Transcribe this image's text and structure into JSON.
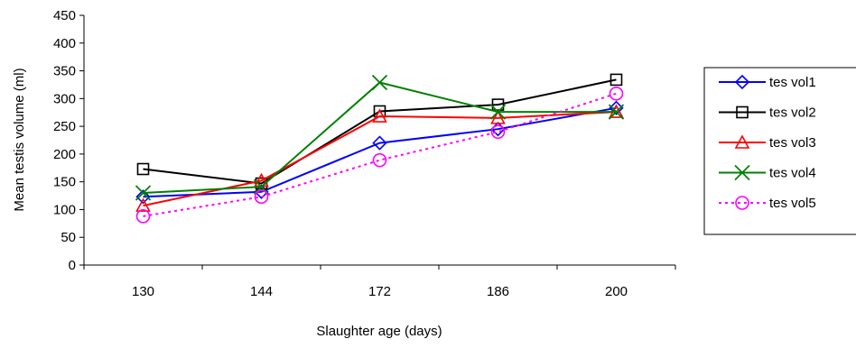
{
  "chart_data": {
    "type": "line",
    "title": "",
    "xlabel": "Slaughter age (days)",
    "ylabel": "Mean testis volume (ml)",
    "categories": [
      "130",
      "144",
      "172",
      "186",
      "200"
    ],
    "ylim": [
      0,
      450
    ],
    "yticks": [
      0,
      50,
      100,
      150,
      200,
      250,
      300,
      350,
      400,
      450
    ],
    "grid": false,
    "legend_position": "right",
    "series": [
      {
        "name": "tes vol1",
        "color": "#0000ff",
        "marker": "diamond",
        "dash": "solid",
        "values": [
          123,
          132,
          220,
          245,
          283
        ]
      },
      {
        "name": "tes vol2",
        "color": "#000000",
        "marker": "square",
        "dash": "solid",
        "values": [
          173,
          147,
          277,
          289,
          334
        ]
      },
      {
        "name": "tes vol3",
        "color": "#ff0000",
        "marker": "triangle",
        "dash": "solid",
        "values": [
          107,
          152,
          268,
          265,
          276
        ]
      },
      {
        "name": "tes vol4",
        "color": "#008000",
        "marker": "x",
        "dash": "solid",
        "values": [
          130,
          141,
          329,
          276,
          276
        ]
      },
      {
        "name": "tes vol5",
        "color": "#ff00ff",
        "marker": "circle",
        "dash": "dotted",
        "values": [
          88,
          123,
          189,
          240,
          309
        ]
      }
    ]
  }
}
